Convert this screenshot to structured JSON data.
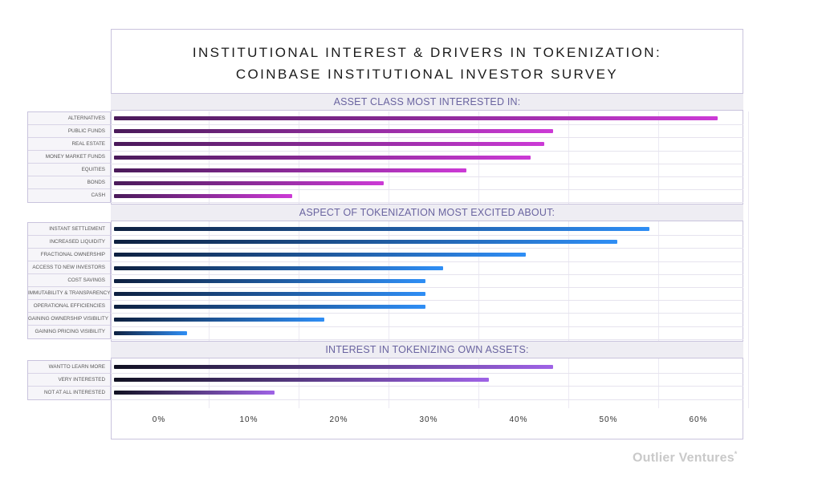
{
  "title": {
    "line1": "INSTITUTIONAL INTEREST & DRIVERS IN TOKENIZATION:",
    "line2": "COINBASE INSTITUTIONAL INVESTOR SURVEY"
  },
  "brand": {
    "name": "Outlier Ventures",
    "mark": "*"
  },
  "colors": {
    "asset_gradient": [
      "#4a1a5a",
      "#cc3ad6"
    ],
    "aspect_gradient": [
      "#0e2040",
      "#2f8ef5"
    ],
    "interest_gradient": [
      "#111122",
      "#9f63e6"
    ]
  },
  "chart_data": {
    "type": "bar",
    "orientation": "horizontal",
    "xlim": [
      0,
      65
    ],
    "x_ticks": [
      "0%",
      "10%",
      "20%",
      "30%",
      "40%",
      "50%",
      "60%"
    ],
    "x_tick_values": [
      0,
      10,
      20,
      30,
      40,
      50,
      60
    ],
    "grid": true,
    "sections": [
      {
        "key": "asset",
        "title": "ASSET CLASS MOST INTERESTED IN:",
        "categories": [
          "ALTERNATIVES",
          "PUBLIC FUNDS",
          "REAL ESTATE",
          "MONEY MARKET FUNDS",
          "EQUITIES",
          "BONDS",
          "CASH"
        ],
        "values": [
          66,
          48,
          47,
          45.5,
          38.5,
          29.5,
          19.5
        ]
      },
      {
        "key": "aspect",
        "title": "ASPECT OF TOKENIZATION MOST EXCITED ABOUT:",
        "categories": [
          "INSTANT SETTLEMENT",
          "INCREASED LIQUIDITY",
          "FRACTIONAL OWNERSHIP",
          "ACCESS TO NEW INVESTORS",
          "COST SAVINGS",
          "IMMUTABILITY & TRANSPARENCY",
          "OPERATIONAL EFFICIENCIES",
          "GAINING OWNERSHIP VISIBILITY",
          "GAINING PRICING VISIBILITY"
        ],
        "values": [
          58.5,
          55,
          45,
          36,
          34,
          34,
          34,
          23,
          8
        ]
      },
      {
        "key": "interest",
        "title": "INTEREST IN TOKENIZING OWN ASSETS:",
        "categories": [
          "WANTTO LEARN MORE",
          "VERY INTERESTED",
          "NOT AT ALL INTERESTED"
        ],
        "values": [
          48,
          41,
          17.5
        ]
      }
    ]
  }
}
